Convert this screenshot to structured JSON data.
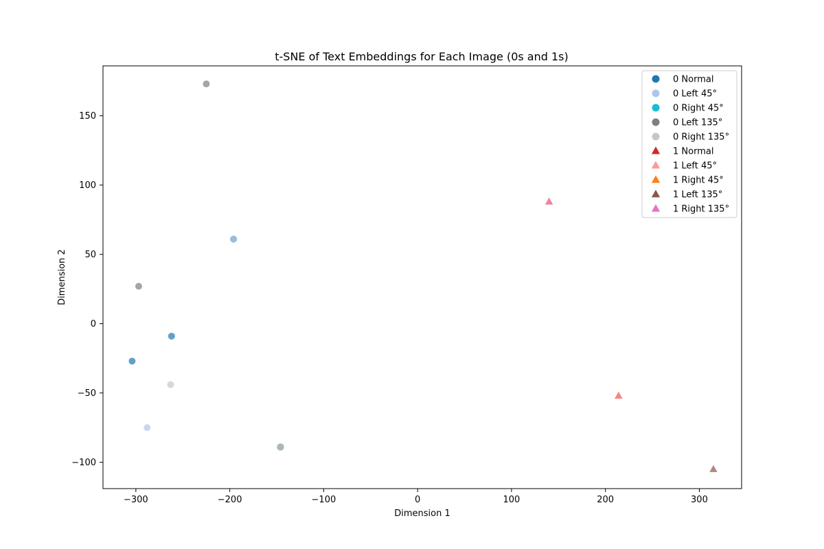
{
  "chart_data": {
    "type": "scatter",
    "title": "t-SNE of Text Embeddings for Each Image (0s and 1s)",
    "xlabel": "Dimension 1",
    "ylabel": "Dimension 2",
    "xlim": [
      -335,
      345
    ],
    "ylim": [
      -119,
      186
    ],
    "xticks": [
      -300,
      -200,
      -100,
      0,
      100,
      200,
      300
    ],
    "xtick_labels": [
      "−300",
      "−200",
      "−100",
      "0",
      "100",
      "200",
      "300"
    ],
    "yticks": [
      -100,
      -50,
      0,
      50,
      100,
      150
    ],
    "ytick_labels": [
      "−100",
      "−50",
      "0",
      "50",
      "100",
      "150"
    ],
    "grid": false,
    "legend_position": "upper right",
    "series": [
      {
        "name": "0 Normal",
        "marker": "circle",
        "color": "#1f77b4",
        "points": [
          [
            -196,
            61
          ],
          [
            -304,
            -27
          ],
          [
            -262,
            -9
          ],
          [
            -146,
            -89
          ]
        ]
      },
      {
        "name": "0 Left 45°",
        "marker": "circle",
        "color": "#aec7e8",
        "points": [
          [
            -196,
            61
          ],
          [
            -288,
            -75
          ],
          [
            -146,
            -89
          ]
        ]
      },
      {
        "name": "0 Right 45°",
        "marker": "circle",
        "color": "#17becf",
        "points": [
          [
            -146,
            -89
          ]
        ]
      },
      {
        "name": "0 Left 135°",
        "marker": "circle",
        "color": "#7f7f7f",
        "points": [
          [
            -225,
            173
          ],
          [
            -297,
            27
          ],
          [
            -146,
            -89
          ]
        ]
      },
      {
        "name": "0 Right 135°",
        "marker": "circle",
        "color": "#c7c7c7",
        "points": [
          [
            -263,
            -44
          ],
          [
            -146,
            -89
          ]
        ]
      },
      {
        "name": "1 Normal",
        "marker": "triangle",
        "color": "#d62728",
        "points": [
          [
            214,
            -52
          ]
        ]
      },
      {
        "name": "1 Left 45°",
        "marker": "triangle",
        "color": "#ff9896",
        "points": [
          [
            214,
            -52
          ]
        ]
      },
      {
        "name": "1 Right 45°",
        "marker": "triangle",
        "color": "#ff7f0e",
        "points": [
          [
            140,
            88
          ]
        ]
      },
      {
        "name": "1 Left 135°",
        "marker": "triangle",
        "color": "#8c564b",
        "points": [
          [
            315,
            -105
          ]
        ]
      },
      {
        "name": "1 Right 135°",
        "marker": "triangle",
        "color": "#e377c2",
        "points": [
          [
            140,
            88
          ]
        ]
      }
    ]
  }
}
